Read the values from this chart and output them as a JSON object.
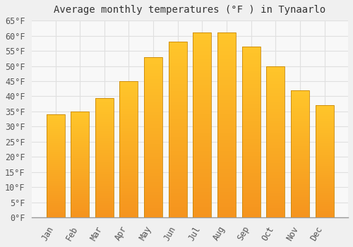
{
  "title": "Average monthly temperatures (°F ) in Tynaarlo",
  "months": [
    "Jan",
    "Feb",
    "Mar",
    "Apr",
    "May",
    "Jun",
    "Jul",
    "Aug",
    "Sep",
    "Oct",
    "Nov",
    "Dec"
  ],
  "values": [
    34,
    35,
    39.5,
    45,
    53,
    58,
    61,
    61,
    56.5,
    50,
    42,
    37
  ],
  "bar_color_top": "#FFC62A",
  "bar_color_bottom": "#F5941E",
  "bar_edge_color": "#C8870A",
  "background_color": "#f0f0f0",
  "plot_bg_color": "#f8f8f8",
  "grid_color": "#e0e0e0",
  "ylim": [
    0,
    65
  ],
  "yticks": [
    0,
    5,
    10,
    15,
    20,
    25,
    30,
    35,
    40,
    45,
    50,
    55,
    60,
    65
  ],
  "title_fontsize": 10,
  "tick_fontsize": 8.5,
  "tick_font_family": "monospace",
  "bar_width": 0.75
}
